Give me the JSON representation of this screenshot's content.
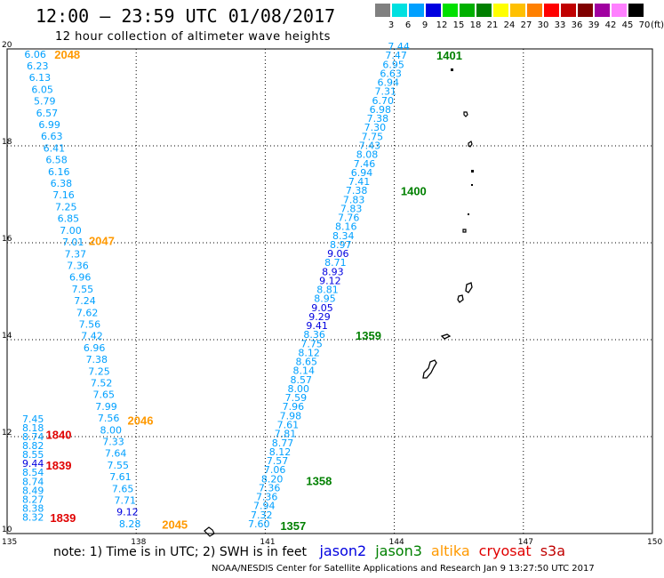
{
  "header": {
    "title": "12:00 – 23:59 UTC 01/08/2017",
    "subtitle": "12 hour collection of altimeter wave heights"
  },
  "colorbar": {
    "labels": [
      "3",
      "6",
      "9",
      "12",
      "15",
      "18",
      "21",
      "24",
      "27",
      "30",
      "33",
      "36",
      "39",
      "42",
      "45",
      "70"
    ],
    "unit": "(ft)",
    "colors": [
      "#808080",
      "#00e0e0",
      "#00a0ff",
      "#0000e0",
      "#00e000",
      "#00b000",
      "#008000",
      "#ffff00",
      "#ffc000",
      "#ff8000",
      "#ff0000",
      "#c00000",
      "#800000",
      "#a000a0",
      "#ff80ff",
      "#000000"
    ]
  },
  "chart_data": {
    "type": "scatter",
    "title": "12:00 – 23:59 UTC 01/08/2017",
    "subtitle": "12 hour collection of altimeter wave heights",
    "xlim": [
      135,
      150
    ],
    "ylim": [
      10,
      20
    ],
    "x_ticks": [
      "135",
      "138",
      "141",
      "144",
      "147",
      "150"
    ],
    "y_ticks": [
      "10",
      "12",
      "14",
      "16",
      "18",
      "20"
    ],
    "tracks": [
      {
        "satellite": "altika",
        "color": "#ff9900",
        "values": [
          "6.06",
          "6.23",
          "6.13",
          "6.05",
          "5.79",
          "6.57",
          "6.99",
          "6.63",
          "6.41",
          "6.58",
          "6.16",
          "6.38",
          "7.16",
          "7.25",
          "6.85",
          "7.00",
          "7.01",
          "7.37",
          "7.36",
          "6.96",
          "7.55",
          "7.24",
          "7.62",
          "7.56",
          "7.42",
          "6.96",
          "7.38",
          "7.25",
          "7.52",
          "7.65",
          "7.99",
          "7.56",
          "8.00",
          "7.33",
          "7.64",
          "7.55",
          "7.61",
          "7.65",
          "7.71",
          "9.12",
          "8.28"
        ],
        "value_colors": [
          "#00a0ff",
          "#00a0ff",
          "#00a0ff",
          "#00a0ff",
          "#00a0ff",
          "#00a0ff",
          "#00a0ff",
          "#00a0ff",
          "#00a0ff",
          "#00a0ff",
          "#00a0ff",
          "#00a0ff",
          "#00a0ff",
          "#00a0ff",
          "#00a0ff",
          "#00a0ff",
          "#00a0ff",
          "#00a0ff",
          "#00a0ff",
          "#00a0ff",
          "#00a0ff",
          "#00a0ff",
          "#00a0ff",
          "#00a0ff",
          "#00a0ff",
          "#00a0ff",
          "#00a0ff",
          "#00a0ff",
          "#00a0ff",
          "#00a0ff",
          "#00a0ff",
          "#00a0ff",
          "#00a0ff",
          "#00a0ff",
          "#00a0ff",
          "#00a0ff",
          "#00a0ff",
          "#00a0ff",
          "#00a0ff",
          "#0000e0",
          "#00a0ff"
        ],
        "start": {
          "lon": 135.4,
          "lat": 19.82
        },
        "end": {
          "lon": 137.6,
          "lat": 10.13
        },
        "times": [
          {
            "label": "2048",
            "lon": 136.1,
            "lat": 19.8
          },
          {
            "label": "2047",
            "lon": 136.9,
            "lat": 15.95
          },
          {
            "label": "2046",
            "lon": 137.8,
            "lat": 12.25
          },
          {
            "label": "2045",
            "lon": 138.6,
            "lat": 10.1
          }
        ]
      },
      {
        "satellite": "cryosat",
        "color": "#e00000",
        "values": [
          "7.45",
          "8.18",
          "8.74",
          "8.82",
          "8.55",
          "9.44",
          "8.54",
          "8.74",
          "8.49",
          "8.27",
          "8.38",
          "8.32"
        ],
        "value_colors": [
          "#00a0ff",
          "#00a0ff",
          "#00a0ff",
          "#00a0ff",
          "#00a0ff",
          "#0000e0",
          "#00a0ff",
          "#00a0ff",
          "#00a0ff",
          "#00a0ff",
          "#00a0ff",
          "#00a0ff"
        ],
        "start": {
          "lon": 135.35,
          "lat": 12.29
        },
        "end": {
          "lon": 135.35,
          "lat": 10.27
        },
        "times": [
          {
            "label": "1840",
            "lon": 135.9,
            "lat": 11.95
          },
          {
            "label": "1839",
            "lon": 135.9,
            "lat": 11.32
          },
          {
            "label": "1839",
            "lon": 136.0,
            "lat": 10.24
          }
        ]
      },
      {
        "satellite": "jason3",
        "color": "#008000",
        "values": [
          "7.44",
          "7.47",
          "6.95",
          "6.63",
          "6.94",
          "7.31",
          "6.70",
          "6.98",
          "7.38",
          "7.30",
          "7.75",
          "7.43",
          "8.08",
          "7.46",
          "6.94",
          "7.41",
          "7.38",
          "7.83",
          "7.83",
          "7.76",
          "8.16",
          "8.34",
          "8.97",
          "9.06",
          "8.71",
          "8.93",
          "9.12",
          "8.81",
          "8.95",
          "9.05",
          "9.29",
          "9.41",
          "8.36",
          "7.75",
          "8.12",
          "8.65",
          "8.14",
          "8.57",
          "8.00",
          "7.59",
          "7.96",
          "7.98",
          "7.61",
          "7.81",
          "8.77",
          "8.12",
          "7.57",
          "7.06",
          "8.20",
          "7.36",
          "7.36",
          "7.94",
          "7.32",
          "7.60"
        ],
        "value_colors": [
          "#00a0ff",
          "#00a0ff",
          "#00a0ff",
          "#00a0ff",
          "#00a0ff",
          "#00a0ff",
          "#00a0ff",
          "#00a0ff",
          "#00a0ff",
          "#00a0ff",
          "#00a0ff",
          "#00a0ff",
          "#00a0ff",
          "#00a0ff",
          "#00a0ff",
          "#00a0ff",
          "#00a0ff",
          "#00a0ff",
          "#00a0ff",
          "#00a0ff",
          "#00a0ff",
          "#00a0ff",
          "#00a0ff",
          "#0000e0",
          "#00a0ff",
          "#0000e0",
          "#0000e0",
          "#00a0ff",
          "#00a0ff",
          "#0000e0",
          "#0000e0",
          "#0000e0",
          "#00a0ff",
          "#00a0ff",
          "#00a0ff",
          "#00a0ff",
          "#00a0ff",
          "#00a0ff",
          "#00a0ff",
          "#00a0ff",
          "#00a0ff",
          "#00a0ff",
          "#00a0ff",
          "#00a0ff",
          "#00a0ff",
          "#00a0ff",
          "#00a0ff",
          "#00a0ff",
          "#00a0ff",
          "#00a0ff",
          "#00a0ff",
          "#00a0ff",
          "#00a0ff",
          "#00a0ff"
        ],
        "start": {
          "lon": 143.85,
          "lat": 19.98
        },
        "end": {
          "lon": 140.6,
          "lat": 10.13
        },
        "times": [
          {
            "label": "1401",
            "lon": 144.98,
            "lat": 19.78
          },
          {
            "label": "1400",
            "lon": 144.15,
            "lat": 16.98
          },
          {
            "label": "1359",
            "lon": 143.1,
            "lat": 14.0
          },
          {
            "label": "1358",
            "lon": 141.95,
            "lat": 11.0
          },
          {
            "label": "1357",
            "lon": 141.35,
            "lat": 10.07
          }
        ]
      }
    ]
  },
  "note": {
    "text": "note: 1) Time is in UTC; 2) SWH is in feet",
    "legend": [
      {
        "name": "jason2",
        "color": "#0000e0"
      },
      {
        "name": "jason3",
        "color": "#008000"
      },
      {
        "name": "altika",
        "color": "#ff9900"
      },
      {
        "name": "cryosat",
        "color": "#e00000"
      },
      {
        "name": "s3a",
        "color": "#c00000"
      }
    ]
  },
  "credit": "NOAA/NESDIS Center for Satellite Applications and Research  Jan  9 13:27:50 UTC 2017"
}
